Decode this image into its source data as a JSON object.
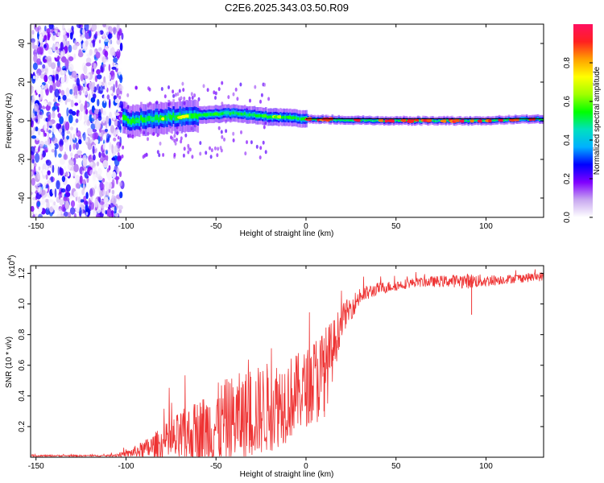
{
  "chart_data": [
    {
      "type": "heatmap",
      "title": "C2E6.2025.343.03.50.R09",
      "xlabel": "Height of straight line (km)",
      "ylabel": "Frequency (Hz)",
      "xlim": [
        -153,
        132
      ],
      "ylim": [
        -50,
        50
      ],
      "xticks": [
        -150,
        -100,
        -50,
        0,
        50,
        100
      ],
      "xtick_labels": [
        "-150",
        "-100",
        "-50",
        "0",
        "50",
        "100"
      ],
      "yticks": [
        -40,
        -20,
        0,
        20,
        40
      ],
      "ytick_labels": [
        "-40",
        "-20",
        "0",
        "20",
        "40"
      ],
      "colorbar": {
        "label": "Normalized spectral amplitude",
        "range": [
          0,
          1
        ],
        "ticks": [
          0.0,
          0.2,
          0.4,
          0.6,
          0.8
        ],
        "tick_labels": [
          "0.0",
          "0.2",
          "0.4",
          "0.6",
          "0.8"
        ],
        "colors": [
          "#ffffff",
          "#c8a8f0",
          "#8000ff",
          "#0000ff",
          "#00b0ff",
          "#00e0c0",
          "#00ff00",
          "#a0ff00",
          "#ffff00",
          "#ffa000",
          "#ff2020",
          "#ff1060"
        ]
      },
      "description_values": {
        "noise_region_x": [
          -153,
          -102
        ],
        "signal_line_frequency_hz": [
          0,
          2,
          4,
          2,
          1,
          0,
          0,
          1
        ],
        "signal_line_x": [
          -100,
          -75,
          -40,
          -20,
          0,
          40,
          90,
          132
        ]
      }
    },
    {
      "type": "line",
      "title": "",
      "xlabel": "Height of straight line (km)",
      "ylabel": "SNR (10 * v/v)",
      "y_multiplier_label": "(x10",
      "y_multiplier_exp": "4",
      "y_multiplier_close": ")",
      "xlim": [
        -153,
        132
      ],
      "ylim": [
        0,
        1.25
      ],
      "xticks": [
        -150,
        -100,
        -50,
        0,
        50,
        100
      ],
      "xtick_labels": [
        "-150",
        "-100",
        "-50",
        "0",
        "50",
        "100"
      ],
      "yticks": [
        0.2,
        0.4,
        0.6,
        0.8,
        1.0,
        1.2
      ],
      "ytick_labels": [
        "0.2",
        "0.4",
        "0.6",
        "0.8",
        "1.0",
        "1.2"
      ],
      "color": "#ee3333",
      "series_envelope": {
        "x": [
          -153,
          -110,
          -100,
          -90,
          -80,
          -70,
          -60,
          -50,
          -40,
          -30,
          -20,
          -10,
          0,
          5,
          10,
          15,
          20,
          30,
          40,
          60,
          80,
          90,
          100,
          110,
          120,
          132
        ],
        "mean": [
          0.01,
          0.01,
          0.02,
          0.05,
          0.08,
          0.12,
          0.16,
          0.2,
          0.24,
          0.28,
          0.33,
          0.38,
          0.45,
          0.5,
          0.55,
          0.7,
          0.9,
          1.05,
          1.1,
          1.14,
          1.15,
          1.15,
          1.15,
          1.16,
          1.17,
          1.18
        ],
        "amp": [
          0.005,
          0.005,
          0.02,
          0.06,
          0.12,
          0.18,
          0.22,
          0.28,
          0.3,
          0.3,
          0.3,
          0.28,
          0.25,
          0.3,
          0.3,
          0.2,
          0.1,
          0.06,
          0.04,
          0.03,
          0.04,
          0.05,
          0.04,
          0.03,
          0.03,
          0.03
        ]
      },
      "notable_points": [
        {
          "x": 10,
          "y": 0.3
        },
        {
          "x": 92,
          "y": 0.93
        }
      ]
    }
  ]
}
